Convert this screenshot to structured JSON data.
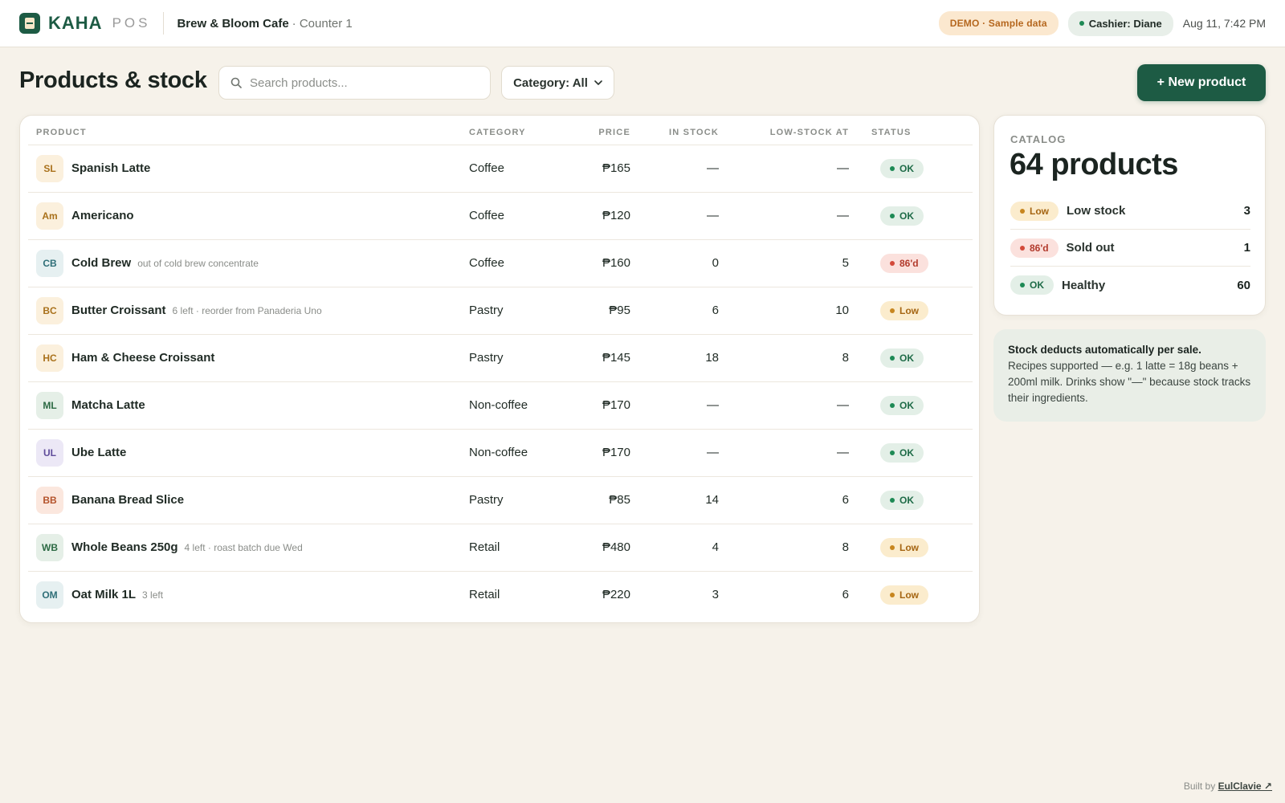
{
  "header": {
    "brand": "KAHA",
    "brand_sub": "POS",
    "shop": "Brew & Bloom Cafe",
    "counter": "· Counter 1",
    "demo_badge": "DEMO · Sample data",
    "cashier": "Cashier: Diane",
    "timestamp": "Aug 11, 7:42 PM"
  },
  "toolbar": {
    "title": "Products & stock",
    "search_placeholder": "Search products...",
    "category_filter": "Category: All",
    "new_button": "+ New product"
  },
  "table": {
    "columns": {
      "product": "PRODUCT",
      "category": "CATEGORY",
      "price": "PRICE",
      "in_stock": "IN STOCK",
      "low_stock_at": "LOW-STOCK AT",
      "status": "STATUS"
    },
    "rows": [
      {
        "initials": "SL",
        "name": "Spanish Latte",
        "note": "",
        "category": "Coffee",
        "price": "₱165",
        "in_stock": "—",
        "low_at": "—",
        "status": "OK",
        "kind": "ok",
        "avatar_bg": "#fbf0dd",
        "avatar_fg": "#a9711b"
      },
      {
        "initials": "Am",
        "name": "Americano",
        "note": "",
        "category": "Coffee",
        "price": "₱120",
        "in_stock": "—",
        "low_at": "—",
        "status": "OK",
        "kind": "ok",
        "avatar_bg": "#fbf0dd",
        "avatar_fg": "#a9711b"
      },
      {
        "initials": "CB",
        "name": "Cold Brew",
        "note": "out of cold brew concentrate",
        "category": "Coffee",
        "price": "₱160",
        "in_stock": "0",
        "low_at": "5",
        "status": "86'd",
        "kind": "out",
        "avatar_bg": "#e6f0f1",
        "avatar_fg": "#2f6f78"
      },
      {
        "initials": "BC",
        "name": "Butter Croissant",
        "note": "6 left · reorder from Panaderia Uno",
        "category": "Pastry",
        "price": "₱95",
        "in_stock": "6",
        "low_at": "10",
        "status": "Low",
        "kind": "low",
        "avatar_bg": "#fbf0dd",
        "avatar_fg": "#a9711b"
      },
      {
        "initials": "HC",
        "name": "Ham & Cheese Croissant",
        "note": "",
        "category": "Pastry",
        "price": "₱145",
        "in_stock": "18",
        "low_at": "8",
        "status": "OK",
        "kind": "ok",
        "avatar_bg": "#fbf0dd",
        "avatar_fg": "#a9711b"
      },
      {
        "initials": "ML",
        "name": "Matcha Latte",
        "note": "",
        "category": "Non-coffee",
        "price": "₱170",
        "in_stock": "—",
        "low_at": "—",
        "status": "OK",
        "kind": "ok",
        "avatar_bg": "#e5efe7",
        "avatar_fg": "#2d6a44"
      },
      {
        "initials": "UL",
        "name": "Ube Latte",
        "note": "",
        "category": "Non-coffee",
        "price": "₱170",
        "in_stock": "—",
        "low_at": "—",
        "status": "OK",
        "kind": "ok",
        "avatar_bg": "#ece8f6",
        "avatar_fg": "#5f4c9a"
      },
      {
        "initials": "BB",
        "name": "Banana Bread Slice",
        "note": "",
        "category": "Pastry",
        "price": "₱85",
        "in_stock": "14",
        "low_at": "6",
        "status": "OK",
        "kind": "ok",
        "avatar_bg": "#fbe7de",
        "avatar_fg": "#b4532b"
      },
      {
        "initials": "WB",
        "name": "Whole Beans 250g",
        "note": "4 left · roast batch due Wed",
        "category": "Retail",
        "price": "₱480",
        "in_stock": "4",
        "low_at": "8",
        "status": "Low",
        "kind": "low",
        "avatar_bg": "#e5efe7",
        "avatar_fg": "#2d6a44"
      },
      {
        "initials": "OM",
        "name": "Oat Milk 1L",
        "note": "3 left",
        "category": "Retail",
        "price": "₱220",
        "in_stock": "3",
        "low_at": "6",
        "status": "Low",
        "kind": "low",
        "avatar_bg": "#e6f0f1",
        "avatar_fg": "#2f6f78"
      }
    ]
  },
  "catalog": {
    "label": "CATALOG",
    "total": "64 products",
    "stats": [
      {
        "badge": "Low",
        "kind": "low",
        "label": "Low stock",
        "count": "3"
      },
      {
        "badge": "86'd",
        "kind": "out",
        "label": "Sold out",
        "count": "1"
      },
      {
        "badge": "OK",
        "kind": "ok",
        "label": "Healthy",
        "count": "60"
      }
    ]
  },
  "info": {
    "title": "Stock deducts automatically per sale.",
    "body": "Recipes supported — e.g. 1 latte = 18g beans + 200ml milk. Drinks show \"—\" because stock tracks their ingredients."
  },
  "footer": {
    "prefix": "Built by",
    "author": "EulClavie ↗"
  }
}
